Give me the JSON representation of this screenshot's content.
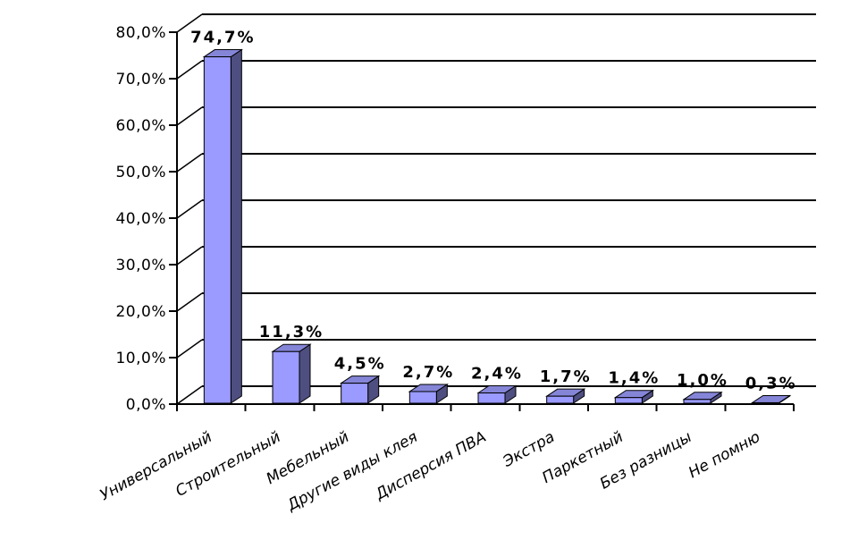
{
  "chart_data": {
    "type": "bar",
    "style": "3d-column",
    "title": "",
    "xlabel": "",
    "ylabel": "",
    "categories": [
      "Универсальный",
      "Строительный",
      "Мебельный",
      "Другие виды клея",
      "Дисперсия ПВА",
      "Экстра",
      "Паркетный",
      "Без разницы",
      "Не помню"
    ],
    "values": [
      74.7,
      11.3,
      4.5,
      2.7,
      2.4,
      1.7,
      1.4,
      1.0,
      0.3
    ],
    "data_labels": [
      "74,7%",
      "11,3%",
      "4,5%",
      "2,7%",
      "2,4%",
      "1,7%",
      "1,4%",
      "1,0%",
      "0,3%"
    ],
    "y_ticks": [
      {
        "value": 0,
        "label": "0,0%"
      },
      {
        "value": 10,
        "label": "10,0%"
      },
      {
        "value": 20,
        "label": "20,0%"
      },
      {
        "value": 30,
        "label": "30,0%"
      },
      {
        "value": 40,
        "label": "40,0%"
      },
      {
        "value": 50,
        "label": "50,0%"
      },
      {
        "value": 60,
        "label": "60,0%"
      },
      {
        "value": 70,
        "label": "70,0%"
      },
      {
        "value": 80,
        "label": "80,0%"
      }
    ],
    "ylim": [
      0,
      80
    ],
    "grid": true,
    "legend": "none",
    "decimal_separator": ",",
    "colors": {
      "bar_front": "#9A9AFF",
      "bar_top": "#8585D8",
      "bar_side": "#4E4E80",
      "outline": "#000000",
      "axis": "#000000",
      "gridline": "#000000",
      "text": "#000000",
      "background": "#FFFFFF"
    }
  }
}
